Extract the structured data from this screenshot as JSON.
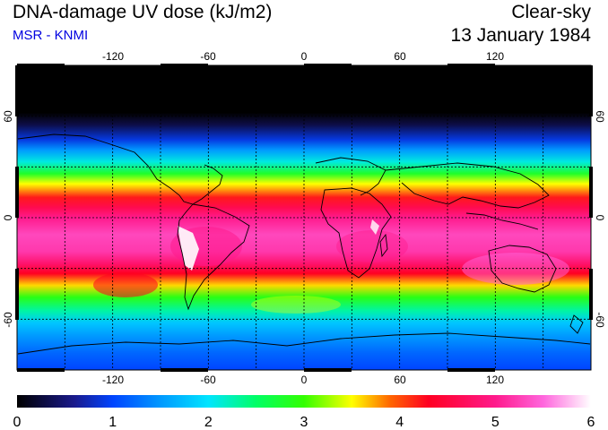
{
  "header": {
    "title": "DNA-damage UV dose (kJ/m2)",
    "subtitle": "MSR - KNMI",
    "sky_condition": "Clear-sky",
    "date": "13 January 1984"
  },
  "map": {
    "projection": "equirectangular",
    "lon_range": [
      -180,
      180
    ],
    "lat_range": [
      -90,
      90
    ],
    "lon_ticks": [
      "-120",
      "-60",
      "0",
      "60",
      "120"
    ],
    "lat_ticks": [
      "60",
      "0",
      "-60"
    ],
    "grid_spacing_deg": 30,
    "zonal_profile": [
      {
        "lat": 90,
        "dose": 0.0
      },
      {
        "lat": 62,
        "dose": 0.0
      },
      {
        "lat": 55,
        "dose": 0.3
      },
      {
        "lat": 46,
        "dose": 0.9
      },
      {
        "lat": 40,
        "dose": 1.5
      },
      {
        "lat": 33,
        "dose": 2.1
      },
      {
        "lat": 26,
        "dose": 2.8
      },
      {
        "lat": 20,
        "dose": 3.5
      },
      {
        "lat": 12,
        "dose": 4.2
      },
      {
        "lat": 6,
        "dose": 4.6
      },
      {
        "lat": 0,
        "dose": 5.0
      },
      {
        "lat": -10,
        "dose": 5.3
      },
      {
        "lat": -20,
        "dose": 5.2
      },
      {
        "lat": -27,
        "dose": 4.8
      },
      {
        "lat": -33,
        "dose": 4.3
      },
      {
        "lat": -40,
        "dose": 3.6
      },
      {
        "lat": -47,
        "dose": 2.9
      },
      {
        "lat": -55,
        "dose": 2.3
      },
      {
        "lat": -62,
        "dose": 1.8
      },
      {
        "lat": -70,
        "dose": 1.5
      },
      {
        "lat": -80,
        "dose": 1.2
      },
      {
        "lat": -90,
        "dose": 1.0
      }
    ]
  },
  "colorbar": {
    "min": 0,
    "max": 6,
    "tick_labels": [
      "0",
      "1",
      "2",
      "3",
      "4",
      "5",
      "6"
    ],
    "stops": [
      {
        "value": 0.0,
        "color": "#000000"
      },
      {
        "value": 0.6,
        "color": "#1a1a8c"
      },
      {
        "value": 1.0,
        "color": "#0044ff"
      },
      {
        "value": 1.5,
        "color": "#0099ff"
      },
      {
        "value": 2.0,
        "color": "#00e5ff"
      },
      {
        "value": 2.5,
        "color": "#00ff66"
      },
      {
        "value": 3.0,
        "color": "#33ff00"
      },
      {
        "value": 3.5,
        "color": "#ffff00"
      },
      {
        "value": 3.9,
        "color": "#ff6600"
      },
      {
        "value": 4.3,
        "color": "#ff0022"
      },
      {
        "value": 5.0,
        "color": "#ff1a8c"
      },
      {
        "value": 5.5,
        "color": "#ff66dd"
      },
      {
        "value": 6.0,
        "color": "#ffffff"
      }
    ]
  }
}
